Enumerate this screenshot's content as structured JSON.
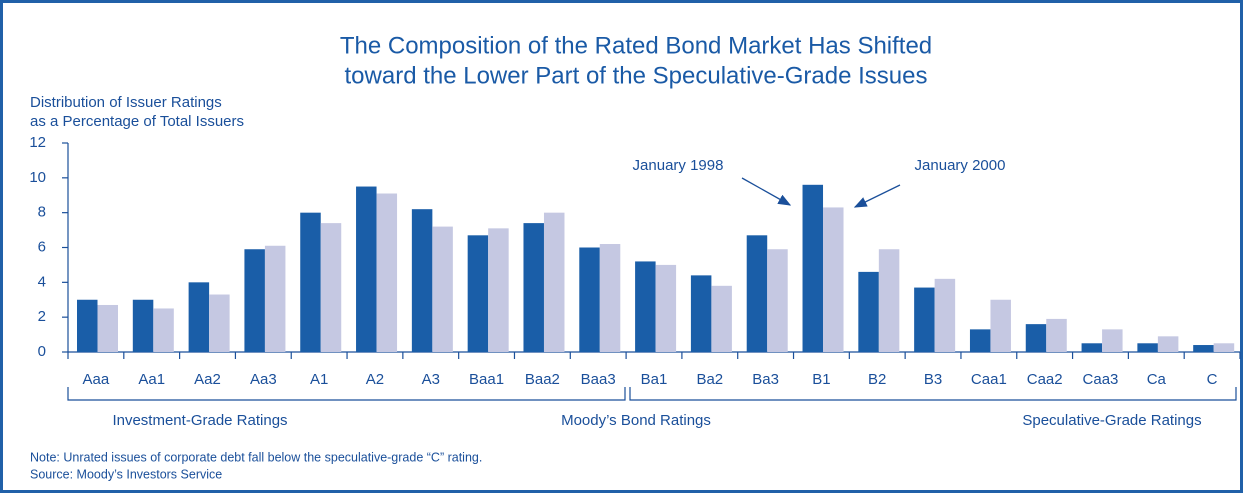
{
  "chart_data": {
    "type": "bar",
    "title": [
      "The Composition of the Rated Bond Market Has Shifted",
      "toward the Lower Part of the Speculative-Grade Issues"
    ],
    "y_label": [
      "Distribution of Issuer Ratings",
      "as a Percentage of Total Issuers"
    ],
    "categories": [
      "Aaa",
      "Aa1",
      "Aa2",
      "Aa3",
      "A1",
      "A2",
      "A3",
      "Baa1",
      "Baa2",
      "Baa3",
      "Ba1",
      "Ba2",
      "Ba3",
      "B1",
      "B2",
      "B3",
      "Caa1",
      "Caa2",
      "Caa3",
      "Ca",
      "C"
    ],
    "series": [
      {
        "name": "January 1998",
        "color": "#1a5ea8",
        "values": [
          3.0,
          3.0,
          4.0,
          5.9,
          8.0,
          9.5,
          8.2,
          6.7,
          7.4,
          6.0,
          5.2,
          4.4,
          6.7,
          9.6,
          4.6,
          3.7,
          1.3,
          1.6,
          0.5,
          0.5,
          0.4
        ]
      },
      {
        "name": "January 2000",
        "color": "#c5c8e2",
        "values": [
          2.7,
          2.5,
          3.3,
          6.1,
          7.4,
          9.1,
          7.2,
          7.1,
          8.0,
          6.2,
          5.0,
          3.8,
          5.9,
          8.3,
          5.9,
          4.2,
          3.0,
          1.9,
          1.3,
          0.9,
          0.5
        ]
      }
    ],
    "ylim": [
      0,
      12
    ],
    "yticks": [
      0,
      2,
      4,
      6,
      8,
      10,
      12
    ],
    "group_labels": [
      "Investment-Grade Ratings",
      "Moody’s Bond Ratings",
      "Speculative-Grade Ratings"
    ],
    "notes": [
      "Note: Unrated issues of corporate debt fall below the speculative-grade “C” rating.",
      "Source: Moody’s Investors Service"
    ]
  }
}
